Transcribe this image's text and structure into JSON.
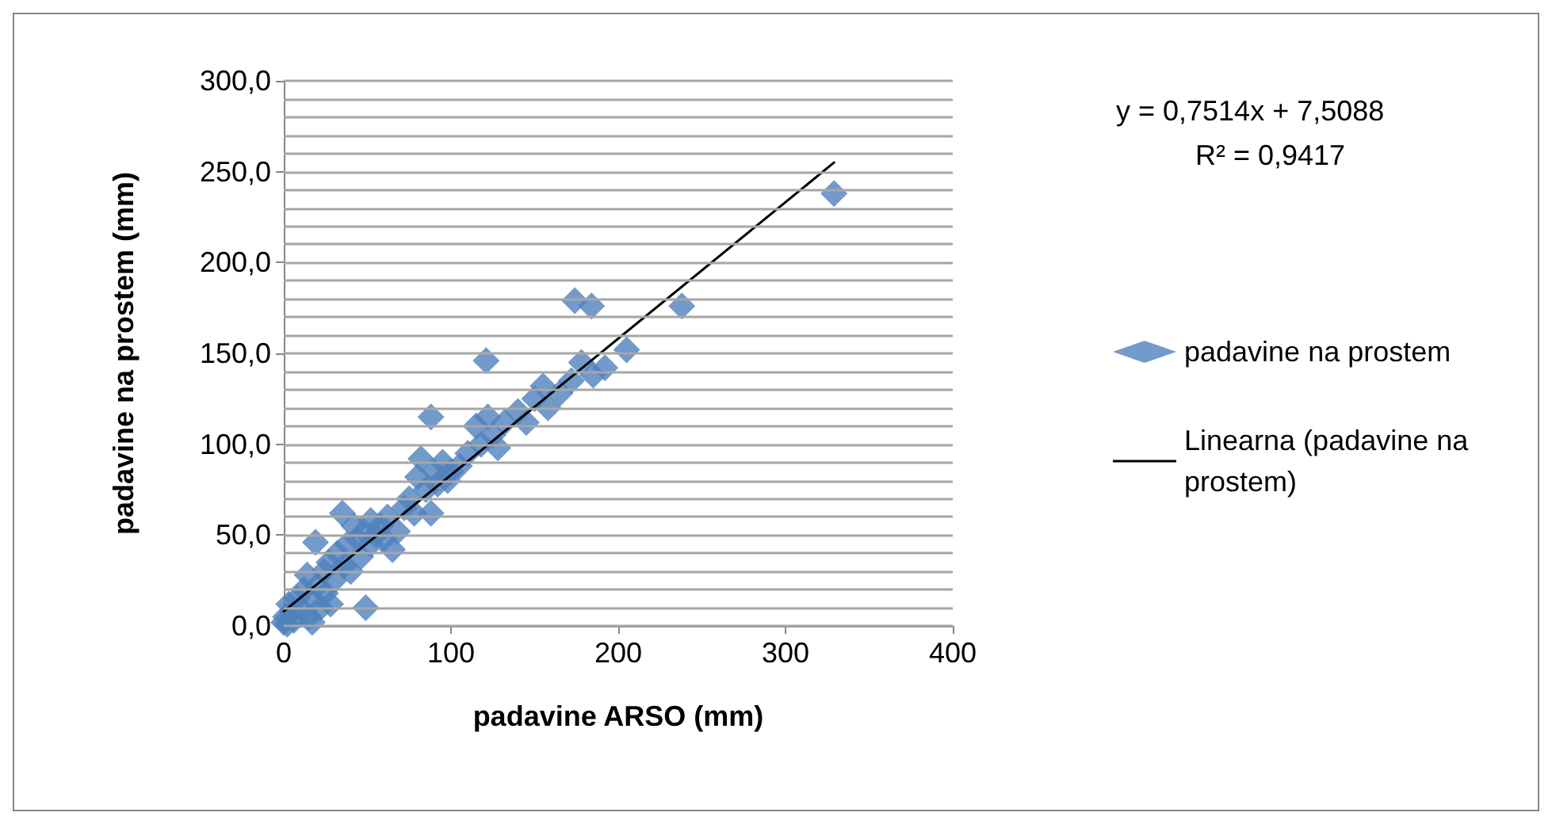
{
  "chart_data": {
    "type": "scatter",
    "xlabel": "padavine ARSO (mm)",
    "ylabel": "padavine na prostem (mm)",
    "xlim": [
      0,
      400
    ],
    "xticks": [
      0,
      100,
      200,
      300,
      400
    ],
    "ylim": [
      0,
      300
    ],
    "yticks": [
      {
        "value": 0,
        "label": "0,0"
      },
      {
        "value": 10,
        "label": null
      },
      {
        "value": 20,
        "label": null
      },
      {
        "value": 30,
        "label": null
      },
      {
        "value": 40,
        "label": null
      },
      {
        "value": 50,
        "label": "50,0"
      },
      {
        "value": 60,
        "label": null
      },
      {
        "value": 70,
        "label": null
      },
      {
        "value": 80,
        "label": null
      },
      {
        "value": 90,
        "label": null
      },
      {
        "value": 100,
        "label": "100,0"
      },
      {
        "value": 110,
        "label": null
      },
      {
        "value": 120,
        "label": null
      },
      {
        "value": 130,
        "label": null
      },
      {
        "value": 140,
        "label": null
      },
      {
        "value": 150,
        "label": "150,0"
      },
      {
        "value": 160,
        "label": null
      },
      {
        "value": 170,
        "label": null
      },
      {
        "value": 180,
        "label": null
      },
      {
        "value": 190,
        "label": null
      },
      {
        "value": 200,
        "label": "200,0"
      },
      {
        "value": 210,
        "label": null
      },
      {
        "value": 220,
        "label": null
      },
      {
        "value": 230,
        "label": null
      },
      {
        "value": 240,
        "label": null
      },
      {
        "value": 250,
        "label": "250,0"
      },
      {
        "value": 260,
        "label": null
      },
      {
        "value": 270,
        "label": null
      },
      {
        "value": 280,
        "label": null
      },
      {
        "value": 290,
        "label": null
      },
      {
        "value": 300,
        "label": "300,0"
      }
    ],
    "grid": "y",
    "legend": "right",
    "marker": "diamond",
    "annotations": [
      "y = 0,7514x + 7,5088",
      "R² = 0,9417"
    ],
    "series": [
      {
        "name": "padavine na prostem",
        "color": "#4f81bd",
        "x": [
          0,
          1,
          2,
          3,
          5,
          6,
          8,
          10,
          12,
          14,
          15,
          17,
          18,
          20,
          22,
          24,
          25,
          27,
          28,
          30,
          32,
          35,
          36,
          38,
          40,
          42,
          44,
          46,
          48,
          52,
          55,
          58,
          62,
          65,
          68,
          72,
          75,
          78,
          80,
          82,
          85,
          88,
          90,
          92,
          95,
          98,
          100,
          105,
          110,
          115,
          118,
          122,
          125,
          128,
          132,
          140,
          145,
          150,
          155,
          158,
          165,
          172,
          178,
          185,
          192,
          205,
          238,
          329,
          174,
          184,
          121,
          88,
          49,
          19,
          52,
          60
        ],
        "values": [
          2,
          5,
          1,
          12,
          8,
          3,
          15,
          10,
          20,
          28,
          5,
          2,
          14,
          22,
          10,
          30,
          18,
          35,
          12,
          25,
          40,
          62,
          33,
          45,
          30,
          55,
          48,
          38,
          52,
          45,
          50,
          55,
          60,
          42,
          52,
          65,
          70,
          62,
          82,
          92,
          75,
          62,
          85,
          78,
          90,
          80,
          85,
          88,
          95,
          110,
          100,
          115,
          105,
          98,
          112,
          118,
          112,
          125,
          132,
          120,
          128,
          135,
          145,
          138,
          142,
          152,
          176,
          238,
          179,
          176,
          146,
          115,
          10,
          46,
          58,
          48
        ]
      },
      {
        "name": "Linearna (padavine na prostem)",
        "type": "line",
        "color": "#000000",
        "marker": "none",
        "line_style": "solid",
        "x": [
          0,
          329
        ],
        "values": [
          8,
          255
        ]
      }
    ]
  }
}
